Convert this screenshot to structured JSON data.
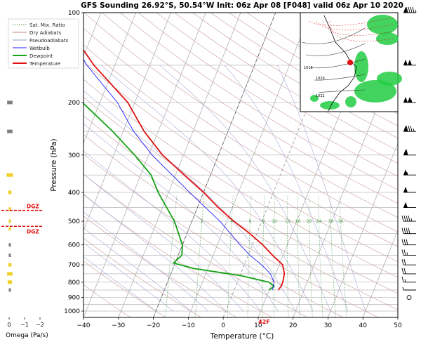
{
  "title": "GFS Sounding 26.92°S, 50.54°W Init: 06z Apr 08 [F048] valid 06z Apr 10 2020",
  "chart_data": {
    "type": "skew-t",
    "title": "GFS Sounding 26.92°S, 50.54°W Init: 06z Apr 08 [F048] valid 06z Apr 10 2020",
    "xlabel": "Temperature (°C)",
    "ylabel": "Pressure (hPa)",
    "xlim": [
      -40,
      50
    ],
    "ylim": [
      1050,
      100
    ],
    "y_scale": "log",
    "x_ticks": [
      "−40",
      "−30",
      "−20",
      "−10",
      "0",
      "10",
      "20",
      "30",
      "40",
      "50"
    ],
    "y_ticks": [
      "100",
      "200",
      "300",
      "400",
      "500",
      "600",
      "700",
      "800",
      "900",
      "1000"
    ],
    "legend": {
      "placement": "top-left",
      "entries": [
        {
          "label": "Sat. Mix. Ratio",
          "color": "#5aa05a",
          "style": "dotted"
        },
        {
          "label": "Dry Adiabats",
          "color": "#c48a8a",
          "style": "solid"
        },
        {
          "label": "Pseudoadiabats",
          "color": "#9a9ac8",
          "style": "solid"
        },
        {
          "label": "Wetbulb",
          "color": "#1e1eff",
          "style": "solid"
        },
        {
          "label": "Dewpoint",
          "color": "#13a313",
          "style": "bold"
        },
        {
          "label": "Temperature",
          "color": "#e01111",
          "style": "bold"
        }
      ]
    },
    "mixing_ratio_labels": [
      "1",
      "2",
      "4",
      "6",
      "8",
      "10",
      "13",
      "16",
      "20",
      "24",
      "30",
      "36"
    ],
    "surface_annotation": "42F",
    "series": [
      {
        "name": "Temperature",
        "color": "#e01111",
        "points": [
          {
            "p": 850,
            "t": 12.6
          },
          {
            "p": 825,
            "t": 13.0
          },
          {
            "p": 800,
            "t": 13.0
          },
          {
            "p": 750,
            "t": 12.5
          },
          {
            "p": 700,
            "t": 11.0
          },
          {
            "p": 650,
            "t": 7.0
          },
          {
            "p": 600,
            "t": 3.0
          },
          {
            "p": 550,
            "t": -2.0
          },
          {
            "p": 500,
            "t": -8.0
          },
          {
            "p": 450,
            "t": -14.0
          },
          {
            "p": 400,
            "t": -20.0
          },
          {
            "p": 350,
            "t": -27.5
          },
          {
            "p": 300,
            "t": -36.0
          },
          {
            "p": 250,
            "t": -44.0
          },
          {
            "p": 200,
            "t": -52.0
          },
          {
            "p": 150,
            "t": -66.0
          },
          {
            "p": 120,
            "t": -75.0
          },
          {
            "p": 100,
            "t": -82.0
          }
        ]
      },
      {
        "name": "Dewpoint",
        "color": "#13a313",
        "points": [
          {
            "p": 850,
            "t": 10.0
          },
          {
            "p": 825,
            "t": 11.0
          },
          {
            "p": 800,
            "t": 9.0
          },
          {
            "p": 760,
            "t": 0.0
          },
          {
            "p": 720,
            "t": -14.0
          },
          {
            "p": 690,
            "t": -20.5
          },
          {
            "p": 650,
            "t": -19.0
          },
          {
            "p": 600,
            "t": -20.0
          },
          {
            "p": 500,
            "t": -25.0
          },
          {
            "p": 400,
            "t": -33.0
          },
          {
            "p": 350,
            "t": -37.0
          },
          {
            "p": 300,
            "t": -44.0
          },
          {
            "p": 250,
            "t": -53.0
          },
          {
            "p": 200,
            "t": -65.0
          },
          {
            "p": 150,
            "t": -82.0
          },
          {
            "p": 120,
            "t": -86.0
          },
          {
            "p": 100,
            "t": -85.0
          }
        ]
      },
      {
        "name": "Wetbulb",
        "color": "#1e1eff",
        "points": [
          {
            "p": 850,
            "t": 11.0
          },
          {
            "p": 800,
            "t": 10.5
          },
          {
            "p": 750,
            "t": 8.5
          },
          {
            "p": 700,
            "t": 5.0
          },
          {
            "p": 650,
            "t": 0.5
          },
          {
            "p": 600,
            "t": -3.5
          },
          {
            "p": 500,
            "t": -12.0
          },
          {
            "p": 400,
            "t": -24.0
          },
          {
            "p": 300,
            "t": -39.0
          },
          {
            "p": 250,
            "t": -47.0
          },
          {
            "p": 200,
            "t": -55.0
          },
          {
            "p": 150,
            "t": -68.0
          },
          {
            "p": 100,
            "t": -82.5
          }
        ]
      }
    ]
  },
  "omega_panel": {
    "xlabel": "Omega (Pa/s)",
    "x_ticks": [
      "0",
      "−1",
      "−2"
    ],
    "dgz_label": "DGZ",
    "dgz_color": "#e01111",
    "bars": [
      {
        "p": 128,
        "omega": 0.1,
        "color": "#f2d02a"
      },
      {
        "p": 200,
        "omega": 0.25,
        "color": "#808080"
      },
      {
        "p": 250,
        "omega": 0.25,
        "color": "#808080"
      },
      {
        "p": 350,
        "omega": 0.3,
        "color": "#f2d02a"
      },
      {
        "p": 400,
        "omega": 0.15,
        "color": "#f2d02a"
      },
      {
        "p": 455,
        "omega": 0.1,
        "color": "#f2d02a"
      },
      {
        "p": 500,
        "omega": 0.1,
        "color": "#f2d02a"
      },
      {
        "p": 530,
        "omega": 0.1,
        "color": "#f2d02a"
      },
      {
        "p": 600,
        "omega": 0.1,
        "color": "#808080"
      },
      {
        "p": 650,
        "omega": 0.1,
        "color": "#808080"
      },
      {
        "p": 700,
        "omega": 0.15,
        "color": "#f2d02a"
      },
      {
        "p": 750,
        "omega": 0.25,
        "color": "#f2d02a"
      },
      {
        "p": 800,
        "omega": 0.2,
        "color": "#f2d02a"
      },
      {
        "p": 850,
        "omega": 0.1,
        "color": "#808080"
      }
    ],
    "dgz_levels": [
      460,
      520
    ]
  },
  "wind_barbs": {
    "color": "#000000",
    "levels": [
      {
        "p": 100,
        "speed_kt": 95
      },
      {
        "p": 150,
        "speed_kt": 100
      },
      {
        "p": 200,
        "speed_kt": 105
      },
      {
        "p": 250,
        "speed_kt": 85
      },
      {
        "p": 300,
        "speed_kt": 60
      },
      {
        "p": 350,
        "speed_kt": 55
      },
      {
        "p": 400,
        "speed_kt": 50
      },
      {
        "p": 450,
        "speed_kt": 50
      },
      {
        "p": 500,
        "speed_kt": 45
      },
      {
        "p": 550,
        "speed_kt": 40
      },
      {
        "p": 600,
        "speed_kt": 30
      },
      {
        "p": 650,
        "speed_kt": 25
      },
      {
        "p": 700,
        "speed_kt": 20
      },
      {
        "p": 750,
        "speed_kt": 20
      },
      {
        "p": 800,
        "speed_kt": 15
      },
      {
        "p": 850,
        "speed_kt": 5
      },
      {
        "p": 900,
        "speed_kt": 0
      }
    ]
  },
  "inset_map": {
    "name": "synoptic map inset",
    "isobar_labels": [
      "1020",
      "1022",
      "1016"
    ],
    "location_marker_color": "#e01111",
    "precip_color": "#22cc44"
  }
}
